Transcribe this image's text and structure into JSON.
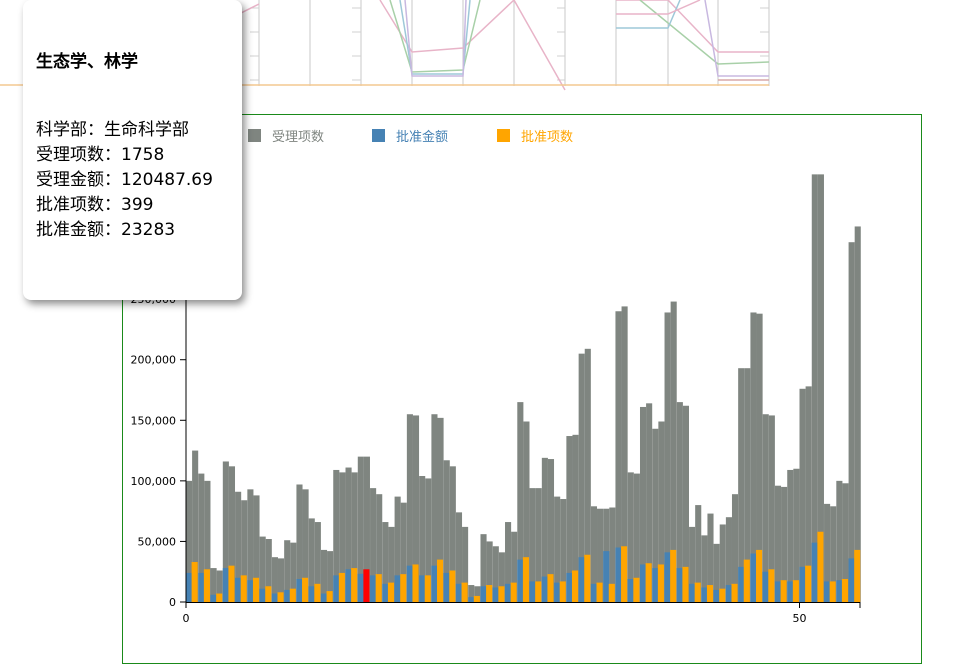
{
  "tooltip": {
    "title": "生态学、林学",
    "lines": [
      {
        "label": "科学部：",
        "value": "生命科学部"
      },
      {
        "label": "受理项数：",
        "value": "1758"
      },
      {
        "label": "受理金额：",
        "value": "120487.69"
      },
      {
        "label": "批准项数：",
        "value": "399"
      },
      {
        "label": "批准金额：",
        "value": "23283"
      }
    ]
  },
  "legend": [
    {
      "label": "受理项数",
      "color": "#7f8580"
    },
    {
      "label": "批准金额",
      "color": "#4682b4"
    },
    {
      "label": "批准项数",
      "color": "#ffa500"
    }
  ],
  "colors": {
    "accepted": "#7f8580",
    "approved_amount": "#4682b4",
    "approved_count": "#ffa500",
    "highlight": "#ff0000",
    "panel_border": "#1a8a1a"
  },
  "chart_data": {
    "type": "bar",
    "x": [
      0,
      1,
      2,
      3,
      4,
      5,
      6,
      7,
      8,
      9,
      10,
      11,
      12,
      13,
      14,
      15,
      16,
      17,
      18,
      19,
      20,
      21,
      22,
      23,
      24,
      25,
      26,
      27,
      28,
      29,
      30,
      31,
      32,
      33,
      34,
      35,
      36,
      37,
      38,
      39,
      40,
      41,
      42,
      43,
      44,
      45,
      46,
      47,
      48,
      49,
      50,
      51,
      52,
      53,
      54
    ],
    "xticks": [
      0,
      50
    ],
    "ylim": [
      0,
      350000
    ],
    "yticks": [
      0,
      50000,
      100000,
      150000,
      200000,
      250000
    ],
    "ytick_labels": [
      "0",
      "50,000",
      "100,000",
      "150,000",
      "200,000",
      "250,000"
    ],
    "highlight_index": 14,
    "series": [
      {
        "name": "受理项数",
        "pairs": [
          [
            100000,
            125000
          ],
          [
            106000,
            100000
          ],
          [
            28000,
            26000
          ],
          [
            116000,
            112000
          ],
          [
            91000,
            84000
          ],
          [
            93000,
            88000
          ],
          [
            54000,
            52000
          ],
          [
            37000,
            36000
          ],
          [
            51000,
            49000
          ],
          [
            97000,
            93000
          ],
          [
            69000,
            66000
          ],
          [
            43000,
            42000
          ],
          [
            109000,
            107000
          ],
          [
            111000,
            107000
          ],
          [
            120000,
            120000
          ],
          [
            94000,
            89000
          ],
          [
            66000,
            62000
          ],
          [
            87000,
            82000
          ],
          [
            155000,
            154000
          ],
          [
            104000,
            102000
          ],
          [
            155000,
            152000
          ],
          [
            117000,
            112000
          ],
          [
            74000,
            62000
          ],
          [
            14000,
            13000
          ],
          [
            56000,
            50000
          ],
          [
            46000,
            41000
          ],
          [
            66000,
            58000
          ],
          [
            165000,
            149000
          ],
          [
            94000,
            94000
          ],
          [
            119000,
            118000
          ],
          [
            87000,
            85000
          ],
          [
            137000,
            138000
          ],
          [
            205000,
            209000
          ],
          [
            79000,
            77000
          ],
          [
            77000,
            78000
          ],
          [
            240000,
            244000
          ],
          [
            107000,
            106000
          ],
          [
            161000,
            164000
          ],
          [
            143000,
            149000
          ],
          [
            239000,
            248000
          ],
          [
            165000,
            162000
          ],
          [
            62000,
            80000
          ],
          [
            55000,
            73000
          ],
          [
            48000,
            64000
          ],
          [
            70000,
            89000
          ],
          [
            193000,
            193000
          ],
          [
            239000,
            238000
          ],
          [
            155000,
            154000
          ],
          [
            96000,
            95000
          ],
          [
            109000,
            110000
          ],
          [
            176000,
            178000
          ],
          [
            353000,
            353000
          ],
          [
            81000,
            79000
          ],
          [
            100000,
            98000
          ],
          [
            297000,
            310000
          ]
        ]
      },
      {
        "name": "批准金额",
        "values": [
          24000,
          24000,
          6000,
          28000,
          20000,
          18000,
          11000,
          7000,
          10000,
          19000,
          13000,
          7000,
          22000,
          27000,
          23283,
          22000,
          15000,
          22000,
          30000,
          22000,
          30000,
          24000,
          15000,
          4000,
          13000,
          12000,
          15000,
          35000,
          17000,
          21000,
          16000,
          24000,
          37000,
          15000,
          42000,
          45000,
          19000,
          31000,
          28000,
          41000,
          28000,
          15000,
          12000,
          10000,
          14000,
          29000,
          40000,
          25000,
          17000,
          17000,
          29000,
          49000,
          17000,
          18000,
          36000
        ]
      },
      {
        "name": "批准项数",
        "values": [
          33000,
          27000,
          7000,
          30000,
          22000,
          20000,
          13000,
          8000,
          11000,
          20000,
          15000,
          9000,
          24000,
          28000,
          27000,
          23000,
          16000,
          23000,
          31000,
          22000,
          35000,
          26000,
          16000,
          5000,
          14000,
          13000,
          16000,
          37000,
          17000,
          23000,
          17000,
          26000,
          39000,
          16000,
          15000,
          46000,
          20000,
          32000,
          31000,
          43000,
          29000,
          16000,
          14000,
          11000,
          15000,
          35000,
          43000,
          27000,
          18000,
          18000,
          30000,
          58000,
          17000,
          19000,
          43000
        ]
      }
    ]
  }
}
